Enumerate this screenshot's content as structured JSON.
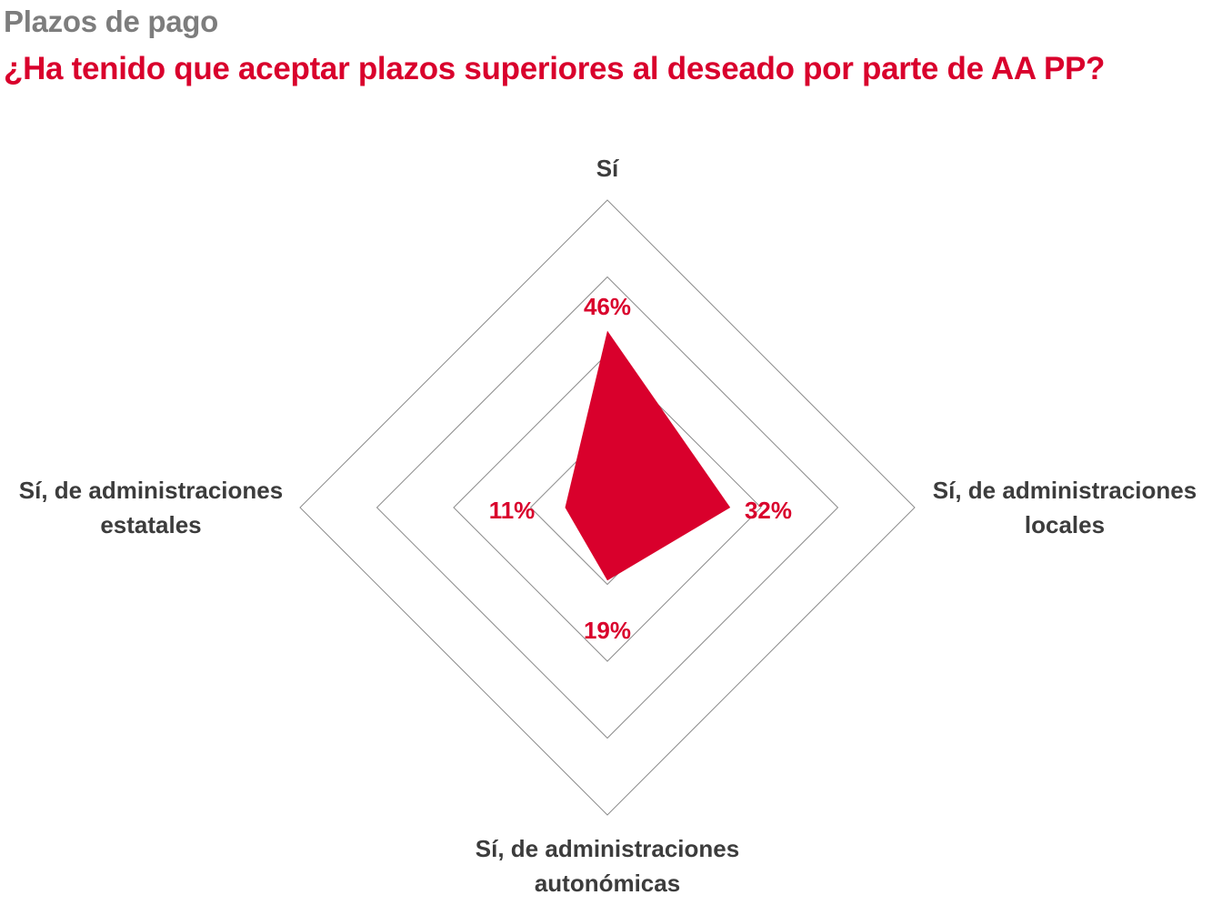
{
  "header": {
    "kicker": "Plazos de pago",
    "title": "¿Ha tenido que aceptar plazos superiores al deseado por parte de AA PP?"
  },
  "colors": {
    "accent": "#d9002c",
    "kicker": "#7d7d7d",
    "axis_text": "#3c3c3c",
    "grid": "#8c8c8c"
  },
  "chart_data": {
    "type": "radar",
    "title": "¿Ha tenido que aceptar plazos superiores al deseado por parte de AA PP?",
    "axes": [
      {
        "label_lines": [
          "Sí"
        ],
        "value": 46,
        "value_label": "46%"
      },
      {
        "label_lines": [
          "Sí, de administraciones",
          "locales"
        ],
        "value": 32,
        "value_label": "32%"
      },
      {
        "label_lines": [
          "Sí, de administraciones",
          "autonómicas"
        ],
        "value": 19,
        "value_label": "19%"
      },
      {
        "label_lines": [
          "Sí, de administraciones",
          "estatales"
        ],
        "value": 11,
        "value_label": "11%"
      }
    ],
    "rings": [
      20,
      40,
      60,
      80
    ],
    "max": 80,
    "grid": true,
    "legend": "none"
  }
}
